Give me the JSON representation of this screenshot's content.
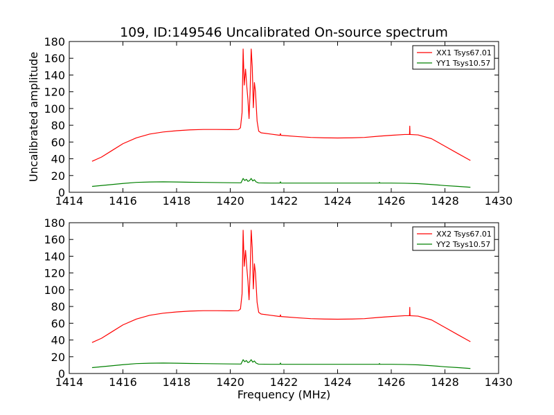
{
  "chart_data": {
    "type": "line",
    "title": "109, ID:149546 Uncalibrated On-source spectrum",
    "xlabel": "Frequency (MHz)",
    "ylabel": "Uncalibrated amplitude",
    "xlim": [
      1414,
      1430
    ],
    "ylim": [
      0,
      180
    ],
    "xticks": [
      1414,
      1416,
      1418,
      1420,
      1422,
      1424,
      1426,
      1428,
      1430
    ],
    "yticks": [
      0,
      20,
      40,
      60,
      80,
      100,
      120,
      140,
      160,
      180
    ],
    "legend_placement": "top-right",
    "panels": [
      {
        "legend": [
          "XX1 Tsys67.01",
          "YY1 Tsys10.57"
        ],
        "series": [
          {
            "name": "XX1 Tsys67.01",
            "color": "#ff0000",
            "points": [
              [
                1414.85,
                37
              ],
              [
                1415.2,
                42
              ],
              [
                1415.6,
                50
              ],
              [
                1416.0,
                58
              ],
              [
                1416.5,
                65
              ],
              [
                1417.0,
                69.5
              ],
              [
                1417.5,
                72
              ],
              [
                1418.0,
                73.5
              ],
              [
                1418.5,
                74.5
              ],
              [
                1419.0,
                75
              ],
              [
                1419.5,
                75
              ],
              [
                1420.0,
                74.8
              ],
              [
                1420.3,
                75
              ],
              [
                1420.38,
                77
              ],
              [
                1420.44,
                95
              ],
              [
                1420.48,
                171
              ],
              [
                1420.52,
                128
              ],
              [
                1420.57,
                147
              ],
              [
                1420.62,
                125
              ],
              [
                1420.66,
                110
              ],
              [
                1420.7,
                88
              ],
              [
                1420.74,
                120
              ],
              [
                1420.78,
                171
              ],
              [
                1420.82,
                150
              ],
              [
                1420.86,
                101
              ],
              [
                1420.9,
                131
              ],
              [
                1420.94,
                120
              ],
              [
                1421.0,
                85
              ],
              [
                1421.06,
                73
              ],
              [
                1421.15,
                71
              ],
              [
                1421.5,
                69.5
              ],
              [
                1421.85,
                68
              ],
              [
                1421.87,
                70
              ],
              [
                1421.89,
                68
              ],
              [
                1422.5,
                66.5
              ],
              [
                1423.0,
                65.5
              ],
              [
                1423.5,
                65
              ],
              [
                1424.0,
                64.8
              ],
              [
                1424.5,
                65
              ],
              [
                1425.0,
                65.5
              ],
              [
                1425.55,
                67
              ],
              [
                1426.0,
                68
              ],
              [
                1426.5,
                69
              ],
              [
                1426.68,
                69
              ],
              [
                1426.69,
                79
              ],
              [
                1426.7,
                69
              ],
              [
                1427.0,
                68.5
              ],
              [
                1427.5,
                64
              ],
              [
                1428.0,
                55
              ],
              [
                1428.5,
                46
              ],
              [
                1428.95,
                38
              ]
            ]
          },
          {
            "name": "YY1 Tsys10.57",
            "color": "#008000",
            "points": [
              [
                1414.85,
                7
              ],
              [
                1415.5,
                9
              ],
              [
                1416.0,
                10.5
              ],
              [
                1416.5,
                11.8
              ],
              [
                1417.0,
                12.3
              ],
              [
                1417.5,
                12.5
              ],
              [
                1418.0,
                12.3
              ],
              [
                1418.5,
                12
              ],
              [
                1419.0,
                11.8
              ],
              [
                1419.5,
                11.6
              ],
              [
                1420.0,
                11.4
              ],
              [
                1420.4,
                11.3
              ],
              [
                1420.48,
                16.5
              ],
              [
                1420.54,
                14
              ],
              [
                1420.6,
                15.5
              ],
              [
                1420.66,
                13
              ],
              [
                1420.72,
                14
              ],
              [
                1420.78,
                16.5
              ],
              [
                1420.84,
                13.5
              ],
              [
                1420.9,
                15
              ],
              [
                1420.96,
                12.5
              ],
              [
                1421.05,
                11.2
              ],
              [
                1421.5,
                11
              ],
              [
                1421.85,
                11
              ],
              [
                1421.87,
                12.5
              ],
              [
                1421.89,
                11
              ],
              [
                1422.5,
                11
              ],
              [
                1423.0,
                11
              ],
              [
                1424.0,
                11
              ],
              [
                1425.0,
                11
              ],
              [
                1425.55,
                11
              ],
              [
                1425.56,
                12
              ],
              [
                1425.57,
                11
              ],
              [
                1426.0,
                11
              ],
              [
                1426.5,
                10.8
              ],
              [
                1427.0,
                10.3
              ],
              [
                1427.5,
                9.3
              ],
              [
                1428.0,
                8
              ],
              [
                1428.5,
                7
              ],
              [
                1428.95,
                6
              ]
            ]
          }
        ]
      },
      {
        "legend": [
          "XX2 Tsys67.01",
          "YY2 Tsys10.57"
        ],
        "series": [
          {
            "name": "XX2 Tsys67.01",
            "color": "#ff0000",
            "points": [
              [
                1414.85,
                37
              ],
              [
                1415.2,
                42
              ],
              [
                1415.6,
                50
              ],
              [
                1416.0,
                58
              ],
              [
                1416.5,
                65
              ],
              [
                1417.0,
                69.5
              ],
              [
                1417.5,
                72
              ],
              [
                1418.0,
                73.5
              ],
              [
                1418.5,
                74.5
              ],
              [
                1419.0,
                75
              ],
              [
                1419.5,
                75
              ],
              [
                1420.0,
                74.8
              ],
              [
                1420.3,
                75
              ],
              [
                1420.38,
                77
              ],
              [
                1420.44,
                95
              ],
              [
                1420.48,
                171
              ],
              [
                1420.52,
                128
              ],
              [
                1420.57,
                147
              ],
              [
                1420.62,
                125
              ],
              [
                1420.66,
                110
              ],
              [
                1420.7,
                88
              ],
              [
                1420.74,
                120
              ],
              [
                1420.78,
                171
              ],
              [
                1420.82,
                150
              ],
              [
                1420.86,
                101
              ],
              [
                1420.9,
                131
              ],
              [
                1420.94,
                120
              ],
              [
                1421.0,
                85
              ],
              [
                1421.06,
                73
              ],
              [
                1421.15,
                71
              ],
              [
                1421.5,
                69.5
              ],
              [
                1421.85,
                68
              ],
              [
                1421.87,
                70
              ],
              [
                1421.89,
                68
              ],
              [
                1422.5,
                66.5
              ],
              [
                1423.0,
                65.5
              ],
              [
                1423.5,
                65
              ],
              [
                1424.0,
                64.8
              ],
              [
                1424.5,
                65
              ],
              [
                1425.0,
                65.5
              ],
              [
                1425.55,
                67
              ],
              [
                1426.0,
                68
              ],
              [
                1426.5,
                69
              ],
              [
                1426.68,
                69
              ],
              [
                1426.69,
                79
              ],
              [
                1426.7,
                69
              ],
              [
                1427.0,
                68.5
              ],
              [
                1427.5,
                64
              ],
              [
                1428.0,
                55
              ],
              [
                1428.5,
                46
              ],
              [
                1428.95,
                38
              ]
            ]
          },
          {
            "name": "YY2 Tsys10.57",
            "color": "#008000",
            "points": [
              [
                1414.85,
                7
              ],
              [
                1415.5,
                9
              ],
              [
                1416.0,
                10.5
              ],
              [
                1416.5,
                11.8
              ],
              [
                1417.0,
                12.3
              ],
              [
                1417.5,
                12.5
              ],
              [
                1418.0,
                12.3
              ],
              [
                1418.5,
                12
              ],
              [
                1419.0,
                11.8
              ],
              [
                1419.5,
                11.6
              ],
              [
                1420.0,
                11.4
              ],
              [
                1420.4,
                11.3
              ],
              [
                1420.48,
                16.5
              ],
              [
                1420.54,
                14
              ],
              [
                1420.6,
                15.5
              ],
              [
                1420.66,
                13
              ],
              [
                1420.72,
                14
              ],
              [
                1420.78,
                16.5
              ],
              [
                1420.84,
                13.5
              ],
              [
                1420.9,
                15
              ],
              [
                1420.96,
                12.5
              ],
              [
                1421.05,
                11.2
              ],
              [
                1421.5,
                11
              ],
              [
                1421.85,
                11
              ],
              [
                1421.87,
                12.5
              ],
              [
                1421.89,
                11
              ],
              [
                1422.5,
                11
              ],
              [
                1423.0,
                11
              ],
              [
                1424.0,
                11
              ],
              [
                1425.0,
                11
              ],
              [
                1425.55,
                11
              ],
              [
                1425.56,
                12
              ],
              [
                1425.57,
                11
              ],
              [
                1426.0,
                11
              ],
              [
                1426.5,
                10.8
              ],
              [
                1427.0,
                10.3
              ],
              [
                1427.5,
                9.3
              ],
              [
                1428.0,
                8
              ],
              [
                1428.5,
                7
              ],
              [
                1428.95,
                6
              ]
            ]
          }
        ]
      }
    ]
  }
}
